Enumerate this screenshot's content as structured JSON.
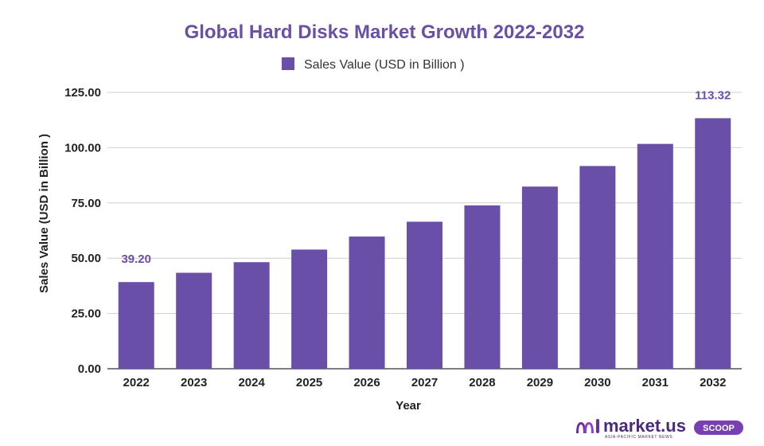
{
  "chart_data": {
    "type": "bar",
    "title": "Global  Hard Disks Market Growth 2022-2032",
    "xlabel": "Year",
    "ylabel": "Sales Value (USD in Billion )",
    "ylim": [
      0,
      125
    ],
    "yticks": [
      "0.00",
      "25.00",
      "50.00",
      "75.00",
      "100.00",
      "125.00"
    ],
    "grid": true,
    "legend_position": "top-center",
    "bar_color": "#6a4fa8",
    "categories": [
      "2022",
      "2023",
      "2024",
      "2025",
      "2026",
      "2027",
      "2028",
      "2029",
      "2030",
      "2031",
      "2032"
    ],
    "series": [
      {
        "name": "Sales Value (USD in Billion )",
        "values": [
          39.2,
          43.4,
          48.2,
          53.9,
          59.8,
          66.5,
          73.9,
          82.4,
          91.7,
          101.7,
          113.32
        ]
      }
    ],
    "data_labels": [
      {
        "category": "2022",
        "text": "39.20"
      },
      {
        "category": "2032",
        "text": "113.32"
      }
    ]
  },
  "brand": {
    "name": "market.us",
    "badge": "SCOOP",
    "tagline": "ASIA-PACIFIC MARKET NEWS",
    "logo_icon": "market-us-logo-icon"
  }
}
